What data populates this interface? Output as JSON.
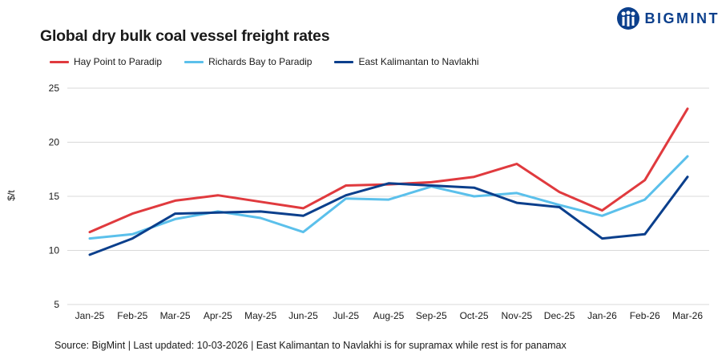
{
  "header": {
    "title": "Global dry bulk coal vessel freight rates",
    "brand": "BIGMINT"
  },
  "footer": {
    "source": "Source: BigMint | Last updated: 10-03-2026 | East Kalimantan to Navlakhi is for supramax while rest is for panamax"
  },
  "colors": {
    "red": "#e03a3e",
    "light_blue": "#5bc0eb",
    "navy": "#0b3f8c",
    "grid": "#d9d9d9"
  },
  "chart_data": {
    "type": "line",
    "title": "Global dry bulk coal vessel freight rates",
    "xlabel": "",
    "ylabel": "$/t",
    "ylim": [
      5,
      25
    ],
    "yticks": [
      5,
      10,
      15,
      20,
      25
    ],
    "grid": true,
    "legend_position": "top-left",
    "categories": [
      "Jan-25",
      "Feb-25",
      "Mar-25",
      "Apr-25",
      "May-25",
      "Jun-25",
      "Jul-25",
      "Aug-25",
      "Sep-25",
      "Oct-25",
      "Nov-25",
      "Dec-25",
      "Jan-26",
      "Feb-26",
      "Mar-26"
    ],
    "series": [
      {
        "name": "Hay Point to Paradip",
        "color": "#e03a3e",
        "values": [
          11.7,
          13.4,
          14.6,
          15.1,
          14.5,
          13.9,
          16.0,
          16.1,
          16.3,
          16.8,
          18.0,
          15.4,
          13.7,
          16.5,
          23.1
        ]
      },
      {
        "name": "Richards Bay to Paradip",
        "color": "#5bc0eb",
        "values": [
          11.1,
          11.5,
          12.9,
          13.6,
          13.0,
          11.7,
          14.8,
          14.7,
          15.9,
          15.0,
          15.3,
          14.2,
          13.2,
          14.7,
          18.7
        ]
      },
      {
        "name": "East Kalimantan to Navlakhi",
        "color": "#0b3f8c",
        "values": [
          9.6,
          11.1,
          13.4,
          13.5,
          13.6,
          13.2,
          15.1,
          16.2,
          16.0,
          15.8,
          14.4,
          14.0,
          11.1,
          11.5,
          16.8
        ]
      }
    ]
  }
}
